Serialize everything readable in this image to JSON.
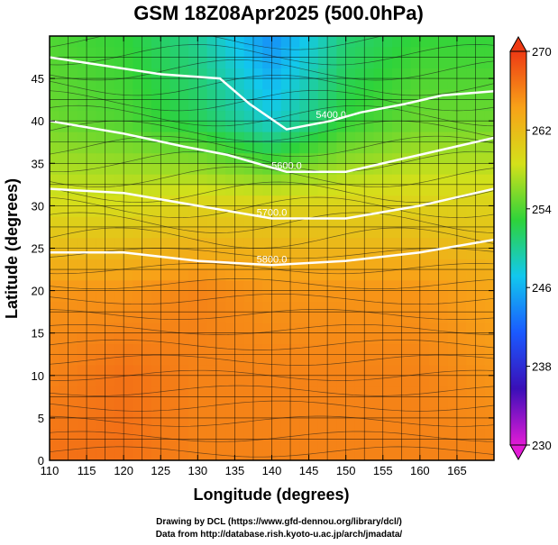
{
  "chart_data": {
    "type": "heatmap",
    "title": "GSM 18Z08Apr2025 (500.0hPa)",
    "xlabel": "Longitude (degrees)",
    "ylabel": "Latitude (degrees)",
    "xlim": [
      110,
      170
    ],
    "ylim": [
      0,
      50
    ],
    "xticks": [
      110,
      115,
      120,
      125,
      130,
      135,
      140,
      145,
      150,
      155,
      160,
      165
    ],
    "yticks": [
      0,
      5,
      10,
      15,
      20,
      25,
      30,
      35,
      40,
      45
    ],
    "grid": true,
    "colorbar": {
      "min": 230,
      "max": 270,
      "ticks": [
        230,
        238,
        246,
        254,
        262,
        270
      ],
      "colors": [
        "#e21bd6",
        "#3a0fb8",
        "#1a5aff",
        "#12c8ee",
        "#2ed33a",
        "#d4e01a",
        "#f8a218",
        "#ee3a14"
      ]
    },
    "temperature_field": {
      "lon": [
        110,
        120,
        130,
        140,
        150,
        160,
        170
      ],
      "lat": [
        0,
        10,
        20,
        30,
        40,
        50
      ],
      "values": [
        [
          267,
          267,
          266,
          266,
          266,
          266,
          266
        ],
        [
          266,
          267,
          266,
          266,
          266,
          266,
          265
        ],
        [
          265,
          265,
          266,
          265,
          265,
          265,
          264
        ],
        [
          259,
          259,
          260,
          260,
          260,
          260,
          260
        ],
        [
          255,
          254,
          252,
          248,
          253,
          255,
          255
        ],
        [
          254,
          253,
          250,
          244,
          251,
          253,
          253
        ]
      ]
    },
    "contours": [
      {
        "label": "5400.0",
        "points": [
          [
            110,
            47.5
          ],
          [
            125,
            45.5
          ],
          [
            133,
            45
          ],
          [
            137,
            42
          ],
          [
            142,
            39
          ],
          [
            148,
            40
          ],
          [
            152,
            41
          ],
          [
            158,
            42
          ],
          [
            163,
            43
          ],
          [
            170,
            43.5
          ]
        ]
      },
      {
        "label": "5600.0",
        "points": [
          [
            110,
            40
          ],
          [
            120,
            38.5
          ],
          [
            128,
            37
          ],
          [
            134,
            36
          ],
          [
            142,
            34
          ],
          [
            150,
            34
          ],
          [
            160,
            36
          ],
          [
            170,
            38
          ]
        ]
      },
      {
        "label": "5700.0",
        "points": [
          [
            110,
            32
          ],
          [
            120,
            31.5
          ],
          [
            130,
            30
          ],
          [
            140,
            28.5
          ],
          [
            150,
            28.5
          ],
          [
            160,
            30
          ],
          [
            170,
            32
          ]
        ]
      },
      {
        "label": "5800.0",
        "points": [
          [
            110,
            24.5
          ],
          [
            120,
            24.5
          ],
          [
            130,
            23.5
          ],
          [
            140,
            23
          ],
          [
            150,
            23.5
          ],
          [
            160,
            24.5
          ],
          [
            170,
            26
          ]
        ]
      }
    ],
    "annotations": [
      "Drawing by DCL (https://www.gfd-dennou.org/library/dcl/)",
      "Data from http://database.rish.kyoto-u.ac.jp/arch/jmadata/"
    ]
  }
}
